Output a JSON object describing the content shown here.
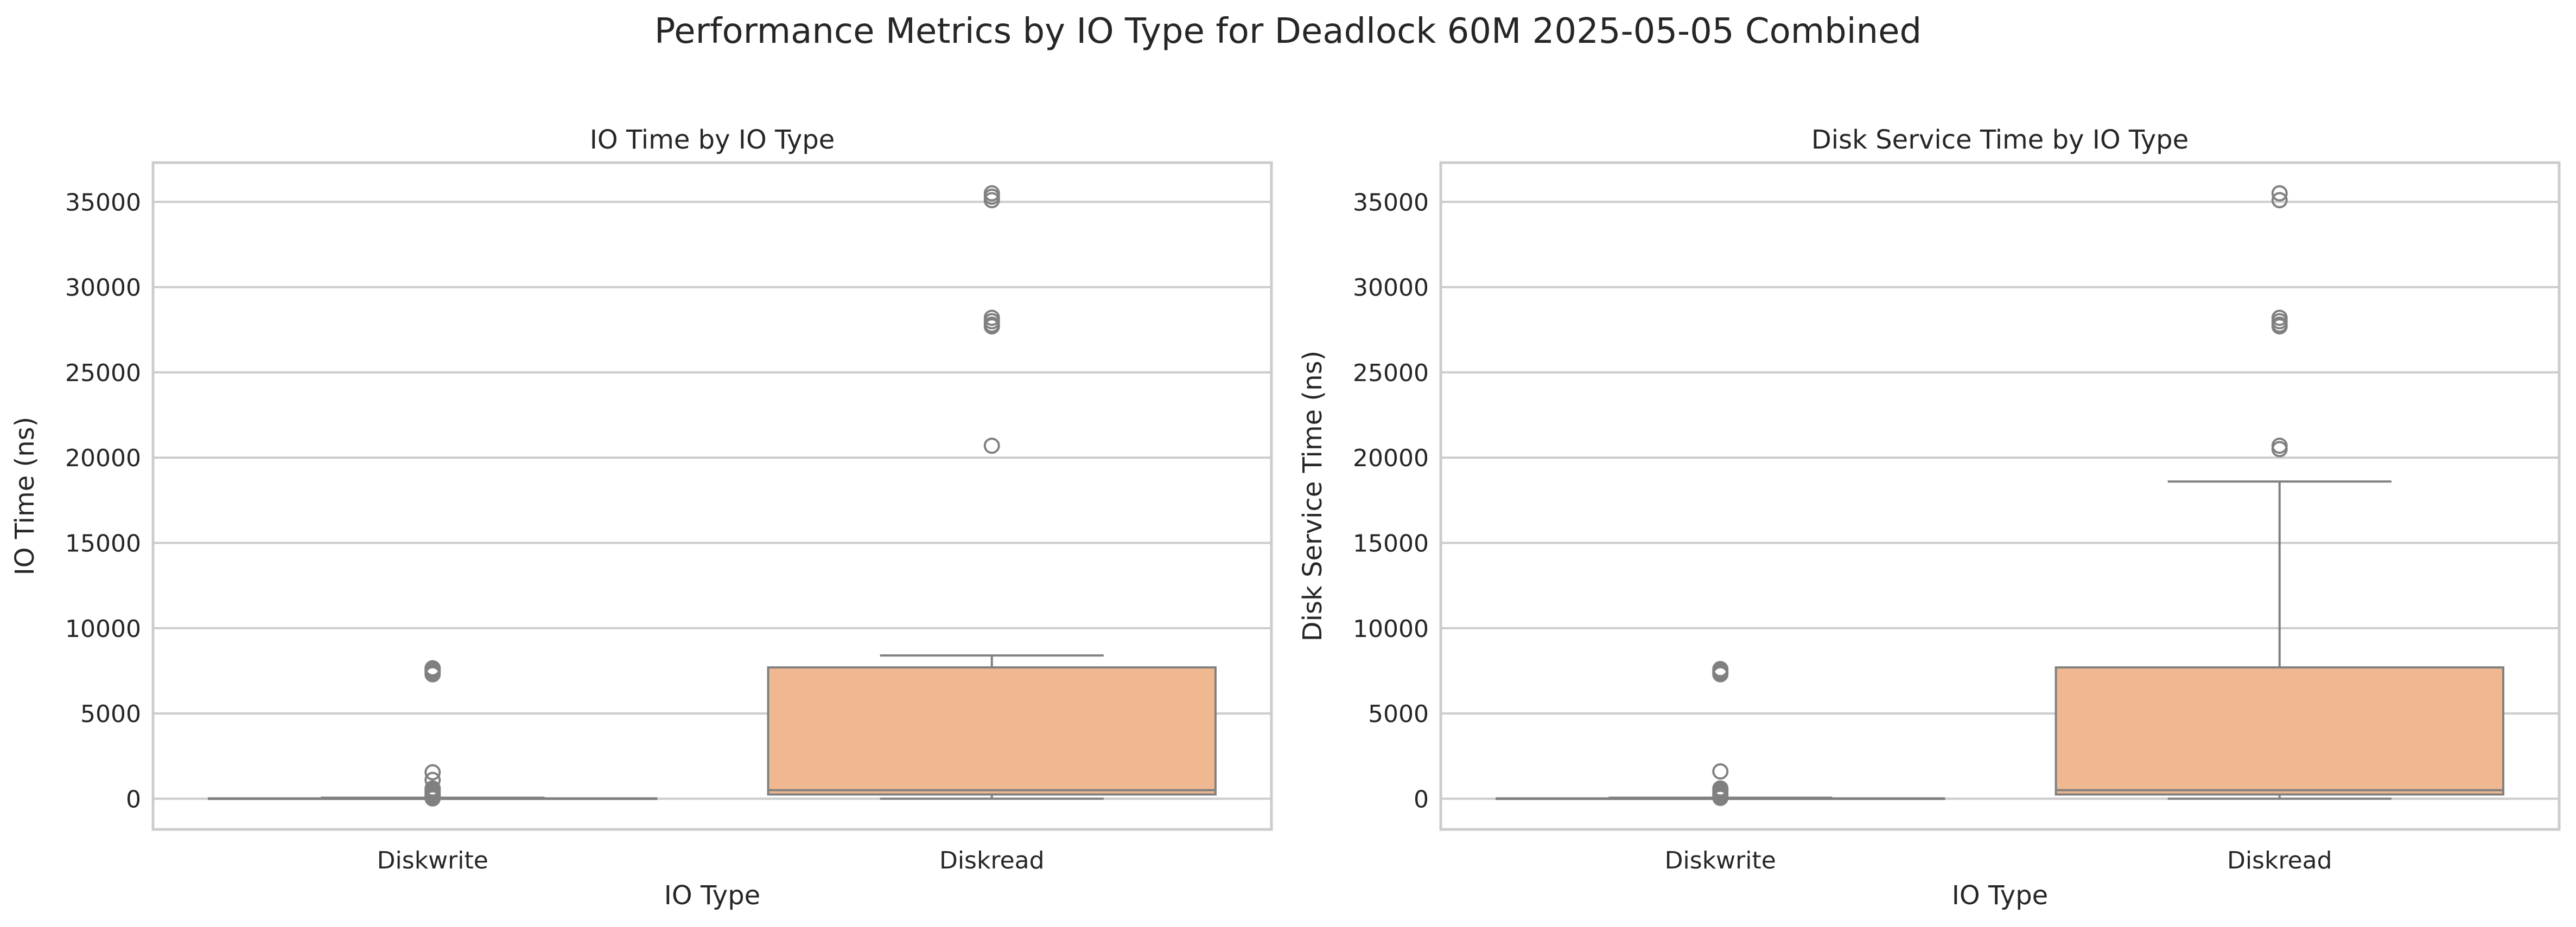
{
  "figure": {
    "title": "Performance Metrics by IO Type for Deadlock 60M 2025-05-05 Combined"
  },
  "colors": {
    "background": "#ffffff",
    "grid": "#cccccc",
    "frame": "#cccccc",
    "box_stroke": "#808080",
    "diskwrite_fill": "#fec295",
    "diskread_fill": "#f0b890"
  },
  "chart_data": [
    {
      "type": "box",
      "title": "IO Time by IO Type",
      "xlabel": "IO Type",
      "ylabel": "IO Time (ns)",
      "ylim": [
        -1800,
        37300
      ],
      "yticks": [
        0,
        5000,
        10000,
        15000,
        20000,
        25000,
        30000,
        35000
      ],
      "grid": true,
      "categories": [
        "Diskwrite",
        "Diskread"
      ],
      "boxes": [
        {
          "category": "Diskwrite",
          "whislo": 0,
          "q1": 0,
          "median": 5,
          "q3": 20,
          "whishi": 60,
          "fliers": [
            7300,
            7400,
            7500,
            7600,
            7650,
            1100,
            1550,
            600,
            500,
            400,
            300,
            200,
            150,
            100,
            50,
            20
          ]
        },
        {
          "category": "Diskread",
          "whislo": 0,
          "q1": 250,
          "median": 500,
          "q3": 7700,
          "whishi": 8400,
          "fliers": [
            35100,
            35300,
            35500,
            28200,
            28000,
            27800,
            27700,
            20700
          ]
        }
      ]
    },
    {
      "type": "box",
      "title": "Disk Service Time by IO Type",
      "xlabel": "IO Type",
      "ylabel": "Disk Service Time (ns)",
      "ylim": [
        -1800,
        37300
      ],
      "yticks": [
        0,
        5000,
        10000,
        15000,
        20000,
        25000,
        30000,
        35000
      ],
      "grid": true,
      "categories": [
        "Diskwrite",
        "Diskread"
      ],
      "boxes": [
        {
          "category": "Diskwrite",
          "whislo": 0,
          "q1": 0,
          "median": 5,
          "q3": 20,
          "whishi": 60,
          "fliers": [
            7300,
            7400,
            7500,
            7600,
            1600,
            600,
            500,
            400,
            300,
            200,
            100,
            50
          ]
        },
        {
          "category": "Diskread",
          "whislo": 0,
          "q1": 250,
          "median": 500,
          "q3": 7700,
          "whishi": 18600,
          "fliers": [
            35100,
            35500,
            28200,
            28000,
            27800,
            27700,
            20700,
            20500
          ]
        }
      ]
    }
  ]
}
